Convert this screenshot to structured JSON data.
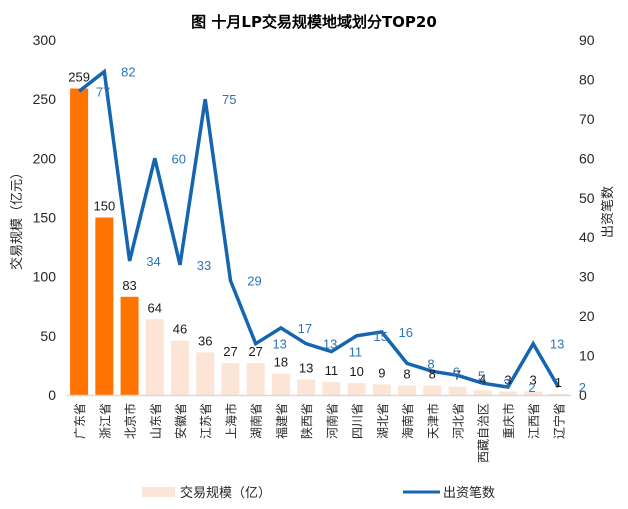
{
  "chart_data": {
    "type": "bar",
    "title": "图 十月LP交易规模地域划分TOP20",
    "xlabel": "",
    "ylabel": "交易规模（亿元）",
    "y2label": "出资笔数",
    "ylim": [
      0,
      300
    ],
    "y2lim": [
      0,
      90
    ],
    "yticks": [
      0,
      50,
      100,
      150,
      200,
      250,
      300
    ],
    "y2ticks": [
      0,
      10,
      20,
      30,
      40,
      50,
      60,
      70,
      80,
      90
    ],
    "grid": false,
    "legend_position": "bottom",
    "categories": [
      "广东省",
      "浙江省",
      "北京市",
      "山东省",
      "安徽省",
      "江苏省",
      "上海市",
      "湖南省",
      "福建省",
      "陕西省",
      "河南省",
      "四川省",
      "湖北省",
      "海南省",
      "天津市",
      "河北省",
      "西藏自治区",
      "重庆市",
      "江西省",
      "辽宁省"
    ],
    "series": [
      {
        "name": "交易规模（亿）",
        "type": "bar",
        "axis": "left",
        "values": [
          259,
          150,
          83,
          64,
          46,
          36,
          27,
          27,
          18,
          13,
          11,
          10,
          9,
          8,
          8,
          7,
          4,
          3,
          3,
          1
        ],
        "highlight_top_n": 3
      },
      {
        "name": "出资笔数",
        "type": "line",
        "axis": "right",
        "values": [
          77,
          82,
          34,
          60,
          33,
          75,
          29,
          13,
          17,
          13,
          11,
          15,
          16,
          8,
          6,
          5,
          3,
          2,
          13,
          2
        ]
      }
    ]
  },
  "colors": {
    "bar_highlight": "#FF7300",
    "bar_default": "#FCE4D6",
    "line": "#1565B0",
    "line_label": "#2E75B6",
    "axis_line": "#D9D9D9"
  },
  "legend": {
    "bar_label": "交易规模（亿）",
    "line_label": "出资笔数"
  }
}
